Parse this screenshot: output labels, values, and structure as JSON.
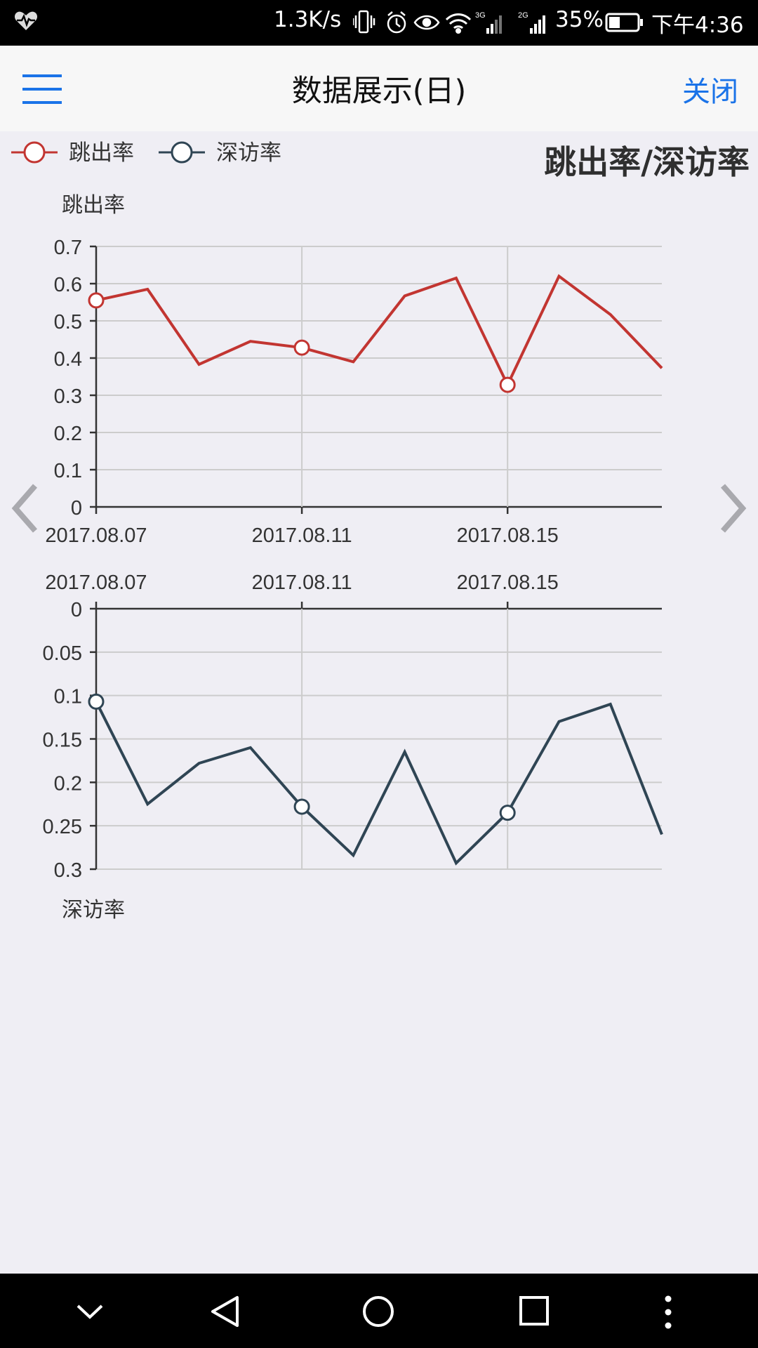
{
  "status_bar": {
    "net_speed": "1.3K/s",
    "battery_percent": "35%",
    "time": "下午4:36",
    "signal_labels": [
      "3G",
      "2G"
    ],
    "icons": [
      "heart-rate-icon",
      "vibrate-icon",
      "alarm-icon",
      "eye-icon",
      "wifi-icon",
      "signal-icon",
      "signal-icon",
      "battery-icon"
    ]
  },
  "top_bar": {
    "title": "数据展示(日)",
    "close_label": "关闭",
    "menu_icon": "hamburger-menu-icon"
  },
  "chart_title": "跳出率/深访率",
  "legend": [
    {
      "name": "跳出率",
      "color": "#c23531"
    },
    {
      "name": "深访率",
      "color": "#2f4554"
    }
  ],
  "nav_icons": {
    "prev": "chevron-left-icon",
    "next": "chevron-right-icon",
    "bottom": [
      "chevron-down-icon",
      "back-triangle-icon",
      "home-circle-icon",
      "recents-square-icon",
      "more-dots-icon"
    ]
  },
  "chart_data": [
    {
      "type": "line",
      "ylabel": "跳出率",
      "ylim": [
        0,
        0.7
      ],
      "yticks": [
        "0",
        "0.1",
        "0.2",
        "0.3",
        "0.4",
        "0.5",
        "0.6",
        "0.7"
      ],
      "xtick_labels": [
        "2017.08.07",
        "2017.08.11",
        "2017.08.15"
      ],
      "xtick_index": [
        0,
        4,
        8
      ],
      "x": [
        "2017.08.07",
        "2017.08.08",
        "2017.08.09",
        "2017.08.10",
        "2017.08.11",
        "2017.08.12",
        "2017.08.13",
        "2017.08.14",
        "2017.08.15",
        "2017.08.16",
        "2017.08.17",
        "2017.08.18"
      ],
      "series": [
        {
          "name": "跳出率",
          "color": "#c23531",
          "values": [
            0.555,
            0.585,
            0.383,
            0.445,
            0.428,
            0.39,
            0.567,
            0.615,
            0.328,
            0.62,
            0.517,
            0.373
          ],
          "markers": [
            0,
            4,
            8
          ]
        }
      ],
      "grid": true,
      "legend_position": "top-left"
    },
    {
      "type": "line",
      "ylabel": "深访率",
      "ylim": [
        0,
        0.3
      ],
      "y_inverted": true,
      "yticks": [
        "0",
        "0.05",
        "0.1",
        "0.15",
        "0.2",
        "0.25",
        "0.3"
      ],
      "xtick_labels": [
        "2017.08.07",
        "2017.08.11",
        "2017.08.15"
      ],
      "xtick_index": [
        0,
        4,
        8
      ],
      "x": [
        "2017.08.07",
        "2017.08.08",
        "2017.08.09",
        "2017.08.10",
        "2017.08.11",
        "2017.08.12",
        "2017.08.13",
        "2017.08.14",
        "2017.08.15",
        "2017.08.16",
        "2017.08.17",
        "2017.08.18"
      ],
      "series": [
        {
          "name": "深访率",
          "color": "#2f4554",
          "values": [
            0.107,
            0.225,
            0.178,
            0.16,
            0.228,
            0.284,
            0.165,
            0.293,
            0.235,
            0.13,
            0.11,
            0.26
          ],
          "markers": [
            0,
            4,
            8
          ]
        }
      ],
      "grid": true,
      "xaxis_position": "top"
    }
  ]
}
